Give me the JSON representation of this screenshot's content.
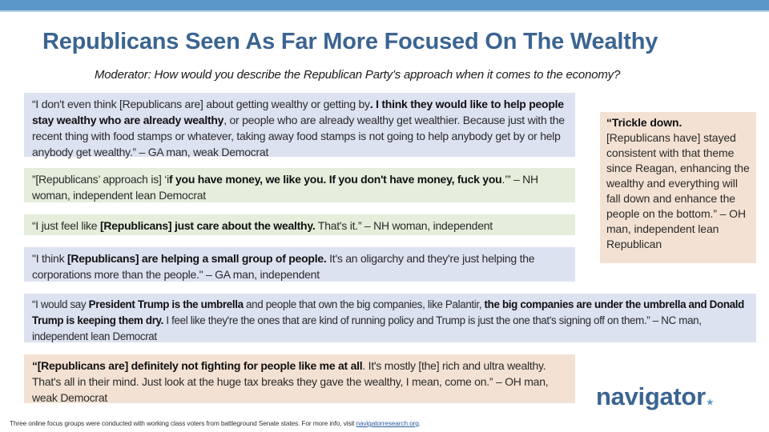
{
  "header": {
    "title": "Republicans Seen As Far More Focused On The Wealthy",
    "subtitle": "Moderator: How would you describe the Republican Party’s approach when it comes to the economy?"
  },
  "quotes": [
    {
      "color": "blue",
      "parts": [
        {
          "t": "“I don't even think [Republicans are] about getting wealthy or getting by",
          "b": false
        },
        {
          "t": ". I think they would like to help people stay wealthy who are already wealthy",
          "b": true
        },
        {
          "t": ", or people who are already wealthy get wealthier. Because just with the recent thing with food stamps or whatever, taking away food stamps is not going to help anybody get by or help anybody get wealthy.” – GA man, weak Democrat",
          "b": false
        }
      ]
    },
    {
      "color": "green",
      "parts": [
        {
          "t": "”[Republicans’ approach is] ‘i",
          "b": false
        },
        {
          "t": "f you have money, we like you. If you don't have money, fuck you",
          "b": true
        },
        {
          "t": ".’” – NH woman, independent lean Democrat",
          "b": false
        }
      ]
    },
    {
      "color": "green",
      "parts": [
        {
          "t": "“I just feel like ",
          "b": false
        },
        {
          "t": "[Republicans] just care about the wealthy.",
          "b": true
        },
        {
          "t": " That's it.” – NH woman, independent",
          "b": false
        }
      ]
    },
    {
      "color": "blue",
      "parts": [
        {
          "t": "\"I think ",
          "b": false
        },
        {
          "t": "[Republicans] are helping a small group of people.",
          "b": true
        },
        {
          "t": " It's an oligarchy and they're just helping the corporations more than the people.\" – GA man, independent",
          "b": false
        }
      ]
    },
    {
      "color": "blue",
      "parts": [
        {
          "t": "“I would say ",
          "b": false
        },
        {
          "t": "President Trump is the umbrella",
          "b": true
        },
        {
          "t": " and people that own the big companies, like Palantir, ",
          "b": false
        },
        {
          "t": "the big companies are under the umbrella and Donald Trump is keeping them dry.",
          "b": true
        },
        {
          "t": " I feel like they're the ones that are kind of running policy and Trump is just the one that's signing off on them.” – NC man, independent lean Democrat",
          "b": false
        }
      ]
    },
    {
      "color": "peach",
      "parts": [
        {
          "t": "“[Republicans are] definitely not fighting for people like me at all",
          "b": true
        },
        {
          "t": ". It's mostly [the] rich and ultra wealthy. That's all in their mind. Just look at the huge tax breaks they gave the wealthy, I mean, come on.” – OH man, weak Democrat",
          "b": false
        }
      ]
    },
    {
      "color": "peach",
      "parts": [
        {
          "t": "“Trickle down.",
          "b": true
        },
        {
          "t": " [Republicans have] stayed consistent with that theme since Reagan, enhancing the wealthy and everything will fall down and enhance the people on the bottom.” – OH man, independent lean Republican",
          "b": false
        }
      ]
    }
  ],
  "logo": {
    "text": "navigator",
    "mark": "★"
  },
  "footer": {
    "text": "Three online focus groups were conducted with working class voters from battleground Senate states. For more info, visit ",
    "link": "navigatorresearch.org",
    "end": "."
  },
  "colors": {
    "title": "#3b6491",
    "topbar": "#5b98c9",
    "blue_box": "#dde2f1",
    "green_box": "#e4eedb",
    "peach_box": "#f3e2d4"
  }
}
